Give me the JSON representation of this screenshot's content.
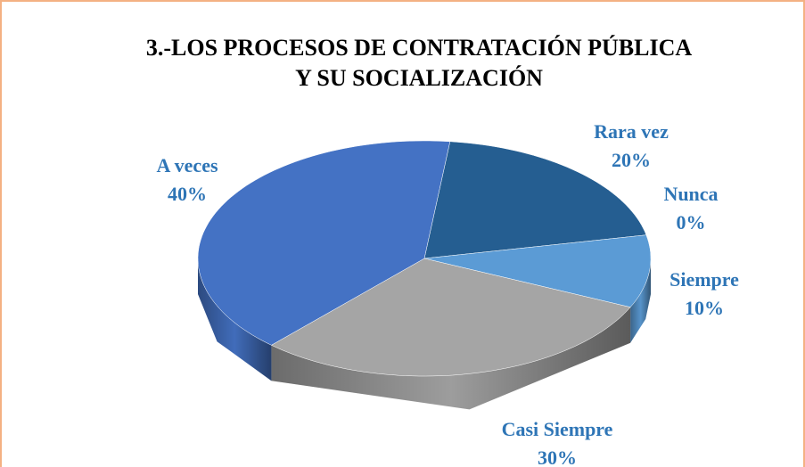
{
  "chart_data": {
    "type": "pie",
    "title": "3.-LOS PROCESOS DE CONTRATACIÓN PÚBLICA",
    "subtitle": "Y SU SOCIALIZACIÓN",
    "categories": [
      "Rara vez",
      "Nunca",
      "Siempre",
      "Casi Siempre",
      "A veces"
    ],
    "values": [
      20,
      0,
      10,
      30,
      40
    ],
    "value_labels": [
      "20%",
      "0%",
      "10%",
      "30%",
      "40%"
    ],
    "colors": [
      "#255e91",
      "#264478",
      "#5b9bd5",
      "#a5a5a5",
      "#4472c4"
    ]
  }
}
